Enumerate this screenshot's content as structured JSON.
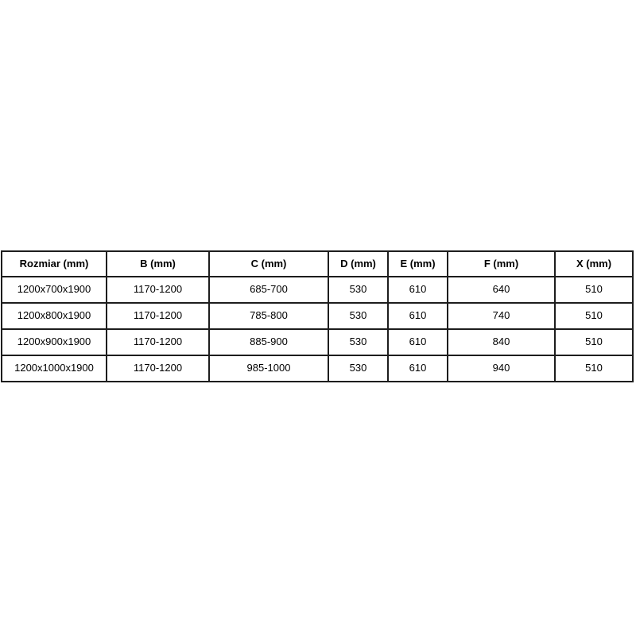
{
  "chart_data": {
    "type": "table",
    "columns": [
      "Rozmiar (mm)",
      "B (mm)",
      "C (mm)",
      "D (mm)",
      "E (mm)",
      "F (mm)",
      "X (mm)"
    ],
    "rows": [
      [
        "1200x700x1900",
        "1170-1200",
        "685-700",
        "530",
        "610",
        "640",
        "510"
      ],
      [
        "1200x800x1900",
        "1170-1200",
        "785-800",
        "530",
        "610",
        "740",
        "510"
      ],
      [
        "1200x900x1900",
        "1170-1200",
        "885-900",
        "530",
        "610",
        "840",
        "510"
      ],
      [
        "1200x1000x1900",
        "1170-1200",
        "985-1000",
        "530",
        "610",
        "940",
        "510"
      ]
    ]
  },
  "styles": {
    "border_color": "#1d1d1d",
    "text_color": "#000000",
    "page_background": "#ffffff"
  }
}
